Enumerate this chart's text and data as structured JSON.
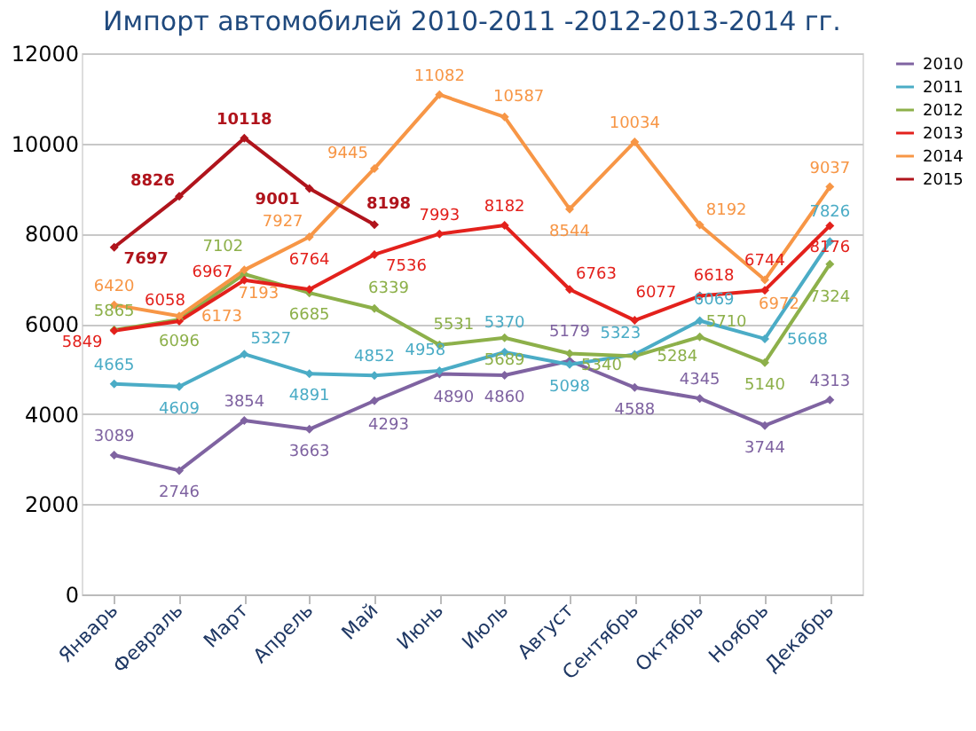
{
  "chart_data": {
    "type": "line",
    "title": "Импорт автомобилей 2010-2011 -2012-2013-2014 гг.",
    "categories": [
      "Январь",
      "Февраль",
      "Март",
      "Апрель",
      "Май",
      "Июнь",
      "Июль",
      "Август",
      "Сентябрь",
      "Октябрь",
      "Ноябрь",
      "Декабрь"
    ],
    "series": [
      {
        "name": "2010",
        "color": "#7f63a1",
        "values": [
          3089,
          2746,
          3854,
          3663,
          4293,
          4890,
          4860,
          5179,
          4588,
          4345,
          3744,
          4313
        ]
      },
      {
        "name": "2011",
        "color": "#4bacc6",
        "values": [
          4665,
          4609,
          5327,
          4891,
          4852,
          4958,
          5370,
          5098,
          5323,
          6069,
          5668,
          7826
        ]
      },
      {
        "name": "2012",
        "color": "#8db04a",
        "values": [
          5865,
          6096,
          7102,
          6685,
          6339,
          5531,
          5689,
          5340,
          5284,
          5710,
          5140,
          7324
        ]
      },
      {
        "name": "2013",
        "color": "#e3211c",
        "values": [
          5849,
          6058,
          6967,
          6764,
          7536,
          7993,
          8182,
          6763,
          6077,
          6618,
          6744,
          8176
        ]
      },
      {
        "name": "2014",
        "color": "#f79646",
        "values": [
          6420,
          6173,
          7193,
          7927,
          9445,
          11082,
          10587,
          8544,
          10034,
          8192,
          6972,
          9037
        ]
      },
      {
        "name": "2015",
        "color": "#b0141c",
        "values": [
          7697,
          8826,
          10118,
          9001,
          8198,
          null,
          null,
          null,
          null,
          null,
          null,
          null
        ]
      }
    ],
    "ylim": [
      0,
      12000
    ],
    "yticks": [
      0,
      2000,
      4000,
      6000,
      8000,
      10000,
      12000
    ],
    "grid": "y",
    "legend": "right",
    "marker": "diamond",
    "line_style": "solid",
    "data_labels": true
  }
}
